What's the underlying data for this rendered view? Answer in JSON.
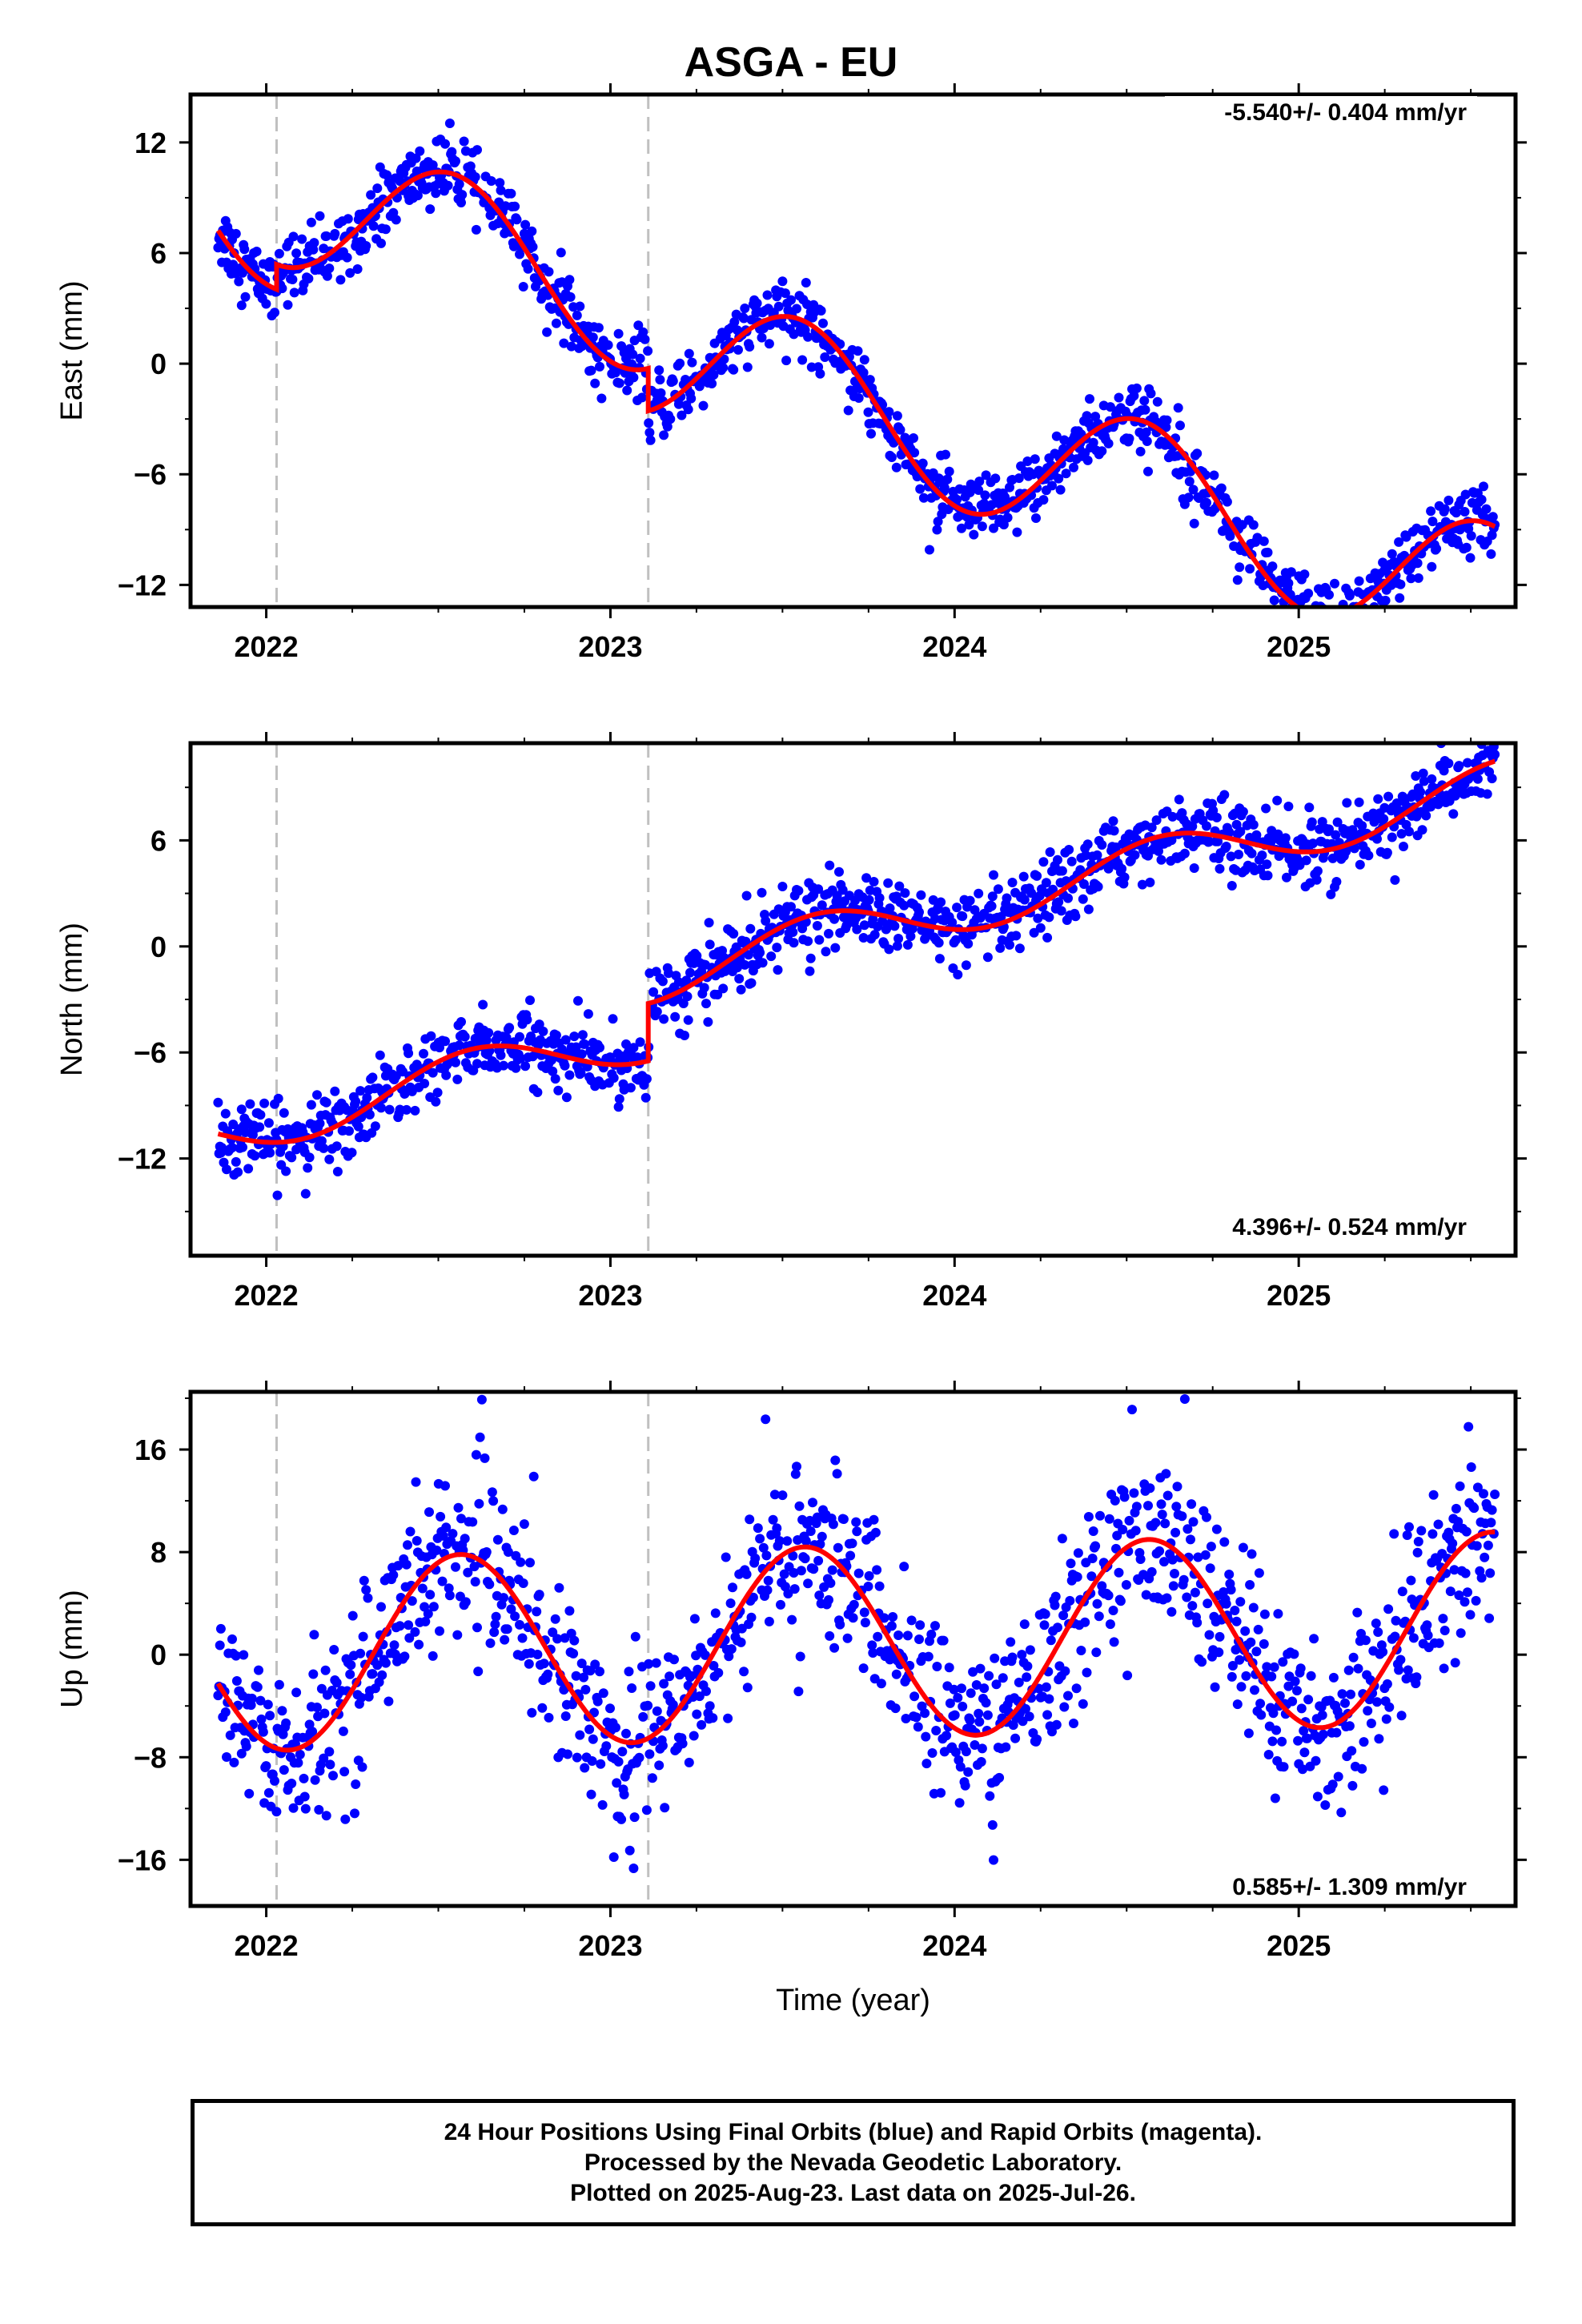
{
  "title": "ASGA - EU",
  "colors": {
    "data_points": "#0000ff",
    "model_fit": "#ff0000",
    "offset_lines": "#c0c0c0"
  },
  "chart_data": [
    {
      "type": "scatter",
      "panel": "east",
      "ylabel": "East (mm)",
      "xlabel": "",
      "rate_text": "-5.540+/- 0.404 mm/yr",
      "xlim": [
        2021.78,
        2025.63
      ],
      "ylim": [
        -13.2,
        14.6
      ],
      "yticks": [
        12,
        6,
        0,
        -6,
        -12
      ],
      "xticks": [
        2022,
        2023,
        2024,
        2025
      ],
      "equipment_changes": [
        2022.03,
        2023.11
      ],
      "model": {
        "offset": 8.07,
        "rate": -5.54,
        "annual_sin": -1.0,
        "annual_cos": -3.75,
        "semi_sin": 0.0,
        "semi_cos": 0.0,
        "steps": [
          [
            2022.03,
            1.35
          ],
          [
            2023.11,
            -2.3
          ]
        ]
      },
      "scatter_sigma": 0.9,
      "legend": "none",
      "grid": false
    },
    {
      "type": "scatter",
      "panel": "north",
      "ylabel": "North (mm)",
      "xlabel": "",
      "rate_text": "4.396+/- 0.524 mm/yr",
      "xlim": [
        2021.78,
        2025.63
      ],
      "ylim": [
        -17.5,
        11.5
      ],
      "yticks": [
        6,
        0,
        -6,
        -12
      ],
      "xticks": [
        2022,
        2023,
        2024,
        2025
      ],
      "equipment_changes": [
        2022.03,
        2023.11
      ],
      "model": {
        "offset": -9.9,
        "rate": 4.396,
        "annual_sin": -0.86,
        "annual_cos": -1.18,
        "semi_sin": 0.0,
        "semi_cos": 0.0,
        "steps": [
          [
            2023.11,
            3.25
          ]
        ]
      },
      "scatter_sigma": 1.0,
      "legend": "none",
      "grid": false
    },
    {
      "type": "scatter",
      "panel": "up",
      "ylabel": "Up (mm)",
      "xlabel": "Time (year)",
      "rate_text": "0.585+/- 1.309 mm/yr",
      "xlim": [
        2021.78,
        2025.63
      ],
      "ylim": [
        -19.6,
        20.5
      ],
      "yticks": [
        16,
        8,
        0,
        -8,
        -16
      ],
      "xticks": [
        2022,
        2023,
        2024,
        2025
      ],
      "equipment_changes": [
        2022.03,
        2023.11
      ],
      "model": {
        "offset": 0.0,
        "rate": 0.585,
        "annual_sin": -2.9,
        "annual_cos": -6.9,
        "semi_sin": 0.0,
        "semi_cos": 0.0,
        "steps": []
      },
      "scatter_sigma": 3.3,
      "legend": "none",
      "grid": false
    }
  ],
  "caption": {
    "line1": "24 Hour Positions Using Final Orbits (blue) and Rapid Orbits (magenta).",
    "line2": "Processed by the Nevada Geodetic Laboratory.",
    "line3": "Plotted on 2025-Aug-23. Last data on 2025-Jul-26."
  }
}
